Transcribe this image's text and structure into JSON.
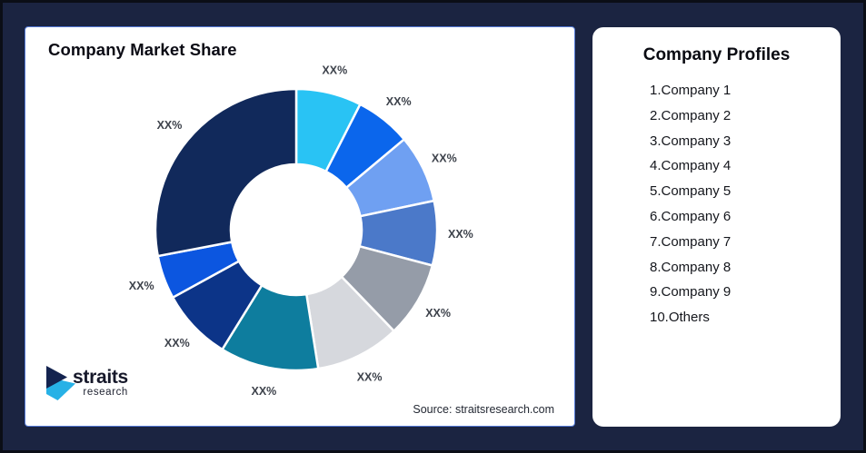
{
  "left_card": {
    "title": "Company Market Share",
    "source_text": "Source: straitsresearch.com",
    "logo": {
      "name": "straits",
      "sub": "research"
    }
  },
  "right_card": {
    "title": "Company Profiles",
    "items": [
      "1.Company 1",
      "2.Company 2",
      "3.Company 3",
      "4.Company 4",
      "5.Company 5",
      "6.Company 6",
      "7.Company 7",
      "8.Company 8",
      "9.Company 9",
      "10.Others"
    ]
  },
  "chart_data": {
    "type": "donut",
    "title": "Company Market Share",
    "start_angle_deg": 0,
    "direction": "clockwise",
    "inner_radius_ratio": 0.465,
    "value_labels_shown": "XX%",
    "segments": [
      {
        "name": "Company 1",
        "label": "XX%",
        "share_pct_est": 7.5,
        "color": "#29C3F4"
      },
      {
        "name": "Company 2",
        "label": "XX%",
        "share_pct_est": 6.4,
        "color": "#0B66EC"
      },
      {
        "name": "Company 3",
        "label": "XX%",
        "share_pct_est": 7.8,
        "color": "#6FA0F2"
      },
      {
        "name": "Company 4",
        "label": "XX%",
        "share_pct_est": 7.4,
        "color": "#4B79C9"
      },
      {
        "name": "Company 5",
        "label": "XX%",
        "share_pct_est": 8.7,
        "color": "#959CA8"
      },
      {
        "name": "Company 6",
        "label": "XX%",
        "share_pct_est": 9.7,
        "color": "#D6D8DD"
      },
      {
        "name": "Company 7",
        "label": "XX%",
        "share_pct_est": 11.3,
        "color": "#0E7D9E"
      },
      {
        "name": "Company 8",
        "label": "XX%",
        "share_pct_est": 8.2,
        "color": "#0C3488"
      },
      {
        "name": "Company 9",
        "label": "XX%",
        "share_pct_est": 5.0,
        "color": "#0C56E0"
      },
      {
        "name": "Others",
        "label": "XX%",
        "share_pct_est": 28.0,
        "color": "#11295B"
      }
    ],
    "logo_colors": {
      "mark_navy": "#14234F",
      "mark_cyan": "#27B1E6"
    }
  }
}
